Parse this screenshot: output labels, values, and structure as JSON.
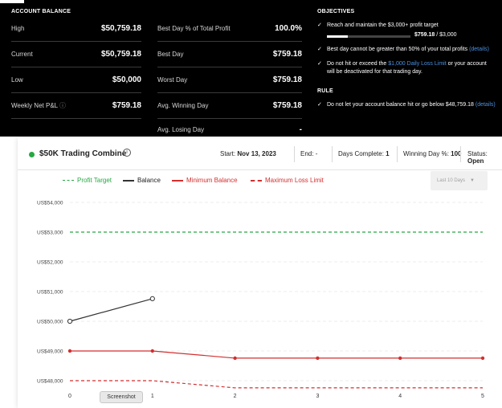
{
  "account_balance": {
    "title": "ACCOUNT BALANCE",
    "rows": [
      {
        "label": "High",
        "value": "$50,759.18"
      },
      {
        "label": "Current",
        "value": "$50,759.18"
      },
      {
        "label": "Low",
        "value": "$50,000"
      },
      {
        "label": "Weekly Net P&L",
        "value": "$759.18"
      }
    ]
  },
  "stats": [
    {
      "label": "Best Day % of Total Profit",
      "value": "100.0%"
    },
    {
      "label": "Best Day",
      "value": "$759.18"
    },
    {
      "label": "Worst Day",
      "value": "$759.18"
    },
    {
      "label": "Avg. Winning Day",
      "value": "$759.18"
    },
    {
      "label": "Avg. Losing Day",
      "value": "-"
    }
  ],
  "objectives": {
    "title": "OBJECTIVES",
    "item1": "Reach and maintain the $3,000+ profit target",
    "progress_value": "$759.18",
    "progress_target": "/ $3,000",
    "progress_fraction": 0.253,
    "item2": "Best day cannot be greater than 50% of your total profits",
    "item2_link": "(details)",
    "item3_a": "Do not hit or exceed the",
    "item3_link": "$1,000 Daily Loss Limit",
    "item3_b": "or your account will be deactivated for that trading day."
  },
  "rule": {
    "title": "RULE",
    "text": "Do not let your account balance hit or go below $48,759.18",
    "link": "(details)"
  },
  "card": {
    "title": "$50K Trading Combine",
    "start_label": "Start:",
    "start_value": "Nov 13, 2023",
    "end_label": "End:",
    "end_value": "-",
    "days_label": "Days Complete:",
    "days_value": "1",
    "winning_label": "Winning Day %:",
    "winning_value": "100",
    "status_label": "Status:",
    "status_value": "Open",
    "dropdown": "Last 10 Days"
  },
  "colors": {
    "profit_target": "#27a844",
    "balance": "#333333",
    "min_balance": "#d32f2f",
    "max_loss": "#d32f2f"
  },
  "tooltip": "Screenshot",
  "chart_data": {
    "type": "line",
    "x": [
      0,
      1,
      2,
      3,
      4,
      5
    ],
    "ytick_labels": [
      "US$54,000",
      "US$53,000",
      "US$52,000",
      "US$51,000",
      "US$50,000",
      "US$49,000",
      "US$48,000"
    ],
    "ytick_values": [
      54000,
      53000,
      52000,
      51000,
      50000,
      49000,
      48000
    ],
    "xtick_labels": [
      "0",
      "1",
      "2",
      "3",
      "4",
      "5"
    ],
    "ylim": [
      48000,
      54000
    ],
    "xlim": [
      0,
      5
    ],
    "legend": "top",
    "series": [
      {
        "name": "Profit Target",
        "style": "dashed",
        "x": [
          0,
          5
        ],
        "values": [
          53000,
          53000
        ]
      },
      {
        "name": "Balance",
        "style": "solid",
        "x": [
          0,
          1
        ],
        "values": [
          50000,
          50759.18
        ]
      },
      {
        "name": "Minimum Balance",
        "style": "solid",
        "x": [
          0,
          1,
          2,
          3,
          4,
          5
        ],
        "values": [
          49000,
          49000,
          48759.18,
          48759.18,
          48759.18,
          48759.18
        ]
      },
      {
        "name": "Maximum Loss Limit",
        "style": "dashed",
        "x": [
          0,
          1,
          2,
          3,
          4,
          5
        ],
        "values": [
          48000,
          48000,
          47759.18,
          47759.18,
          47759.18,
          47759.18
        ]
      }
    ]
  }
}
